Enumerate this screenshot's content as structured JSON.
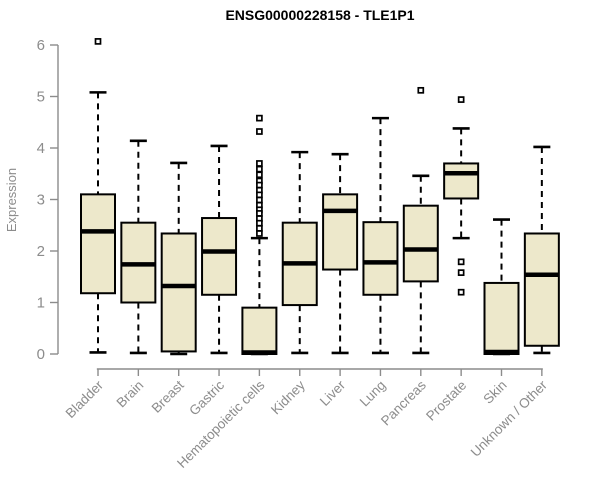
{
  "chart_data": {
    "type": "boxplot",
    "title": "ENSG00000228158 - TLE1P1",
    "ylabel": "Expression",
    "xlabel": "",
    "ylim": [
      0,
      6
    ],
    "yticks": [
      0,
      1,
      2,
      3,
      4,
      5,
      6
    ],
    "grid": false,
    "legend": "none",
    "categories": [
      "Bladder",
      "Brain",
      "Breast",
      "Gastric",
      "Hematopoietic cells",
      "Kidney",
      "Liver",
      "Lung",
      "Pancreas",
      "Prostate",
      "Skin",
      "Unknown / Other"
    ],
    "series": [
      {
        "name": "Bladder",
        "whisker_low": 0.03,
        "q1": 1.18,
        "median": 2.38,
        "q3": 3.1,
        "whisker_high": 5.08,
        "outliers": [
          6.07
        ]
      },
      {
        "name": "Brain",
        "whisker_low": 0.02,
        "q1": 1.0,
        "median": 1.74,
        "q3": 2.55,
        "whisker_high": 4.14,
        "outliers": []
      },
      {
        "name": "Breast",
        "whisker_low": 0.0,
        "q1": 0.05,
        "median": 1.32,
        "q3": 2.34,
        "whisker_high": 3.71,
        "outliers": []
      },
      {
        "name": "Gastric",
        "whisker_low": 0.02,
        "q1": 1.15,
        "median": 1.99,
        "q3": 2.64,
        "whisker_high": 4.04,
        "outliers": []
      },
      {
        "name": "Hematopoietic cells",
        "whisker_low": 0.0,
        "q1": 0.0,
        "median": 0.03,
        "q3": 0.9,
        "whisker_high": 2.25,
        "outliers": [
          4.58,
          4.32,
          3.7,
          3.59,
          3.48,
          3.36,
          3.28,
          3.18,
          3.09,
          2.99,
          2.89,
          2.8,
          2.73,
          2.63,
          2.54,
          2.44,
          2.34
        ]
      },
      {
        "name": "Kidney",
        "whisker_low": 0.02,
        "q1": 0.95,
        "median": 1.76,
        "q3": 2.55,
        "whisker_high": 3.92,
        "outliers": []
      },
      {
        "name": "Liver",
        "whisker_low": 0.02,
        "q1": 1.64,
        "median": 2.78,
        "q3": 3.1,
        "whisker_high": 3.88,
        "outliers": []
      },
      {
        "name": "Lung",
        "whisker_low": 0.02,
        "q1": 1.15,
        "median": 1.78,
        "q3": 2.56,
        "whisker_high": 4.58,
        "outliers": []
      },
      {
        "name": "Pancreas",
        "whisker_low": 0.02,
        "q1": 1.41,
        "median": 2.03,
        "q3": 2.88,
        "whisker_high": 3.46,
        "outliers": [
          5.12
        ]
      },
      {
        "name": "Prostate",
        "whisker_low": 2.25,
        "q1": 3.02,
        "median": 3.51,
        "q3": 3.7,
        "whisker_high": 4.38,
        "outliers": [
          4.94,
          1.79,
          1.58,
          1.2
        ]
      },
      {
        "name": "Skin",
        "whisker_low": 0.0,
        "q1": 0.0,
        "median": 0.04,
        "q3": 1.38,
        "whisker_high": 2.61,
        "outliers": []
      },
      {
        "name": "Unknown / Other",
        "whisker_low": 0.02,
        "q1": 0.16,
        "median": 1.54,
        "q3": 2.34,
        "whisker_high": 4.02,
        "outliers": []
      }
    ]
  },
  "colors": {
    "background": "#FFFFFF",
    "box_fill": "#EDE8CB",
    "box_border": "#000000",
    "median": "#000000",
    "whisker": "#000000",
    "outlier_stroke": "#000000",
    "outlier_fill": "#FFFFFF",
    "axis_line": "#8C8C8C",
    "axis_text": "#8C8C8C",
    "title_text": "#000000"
  }
}
